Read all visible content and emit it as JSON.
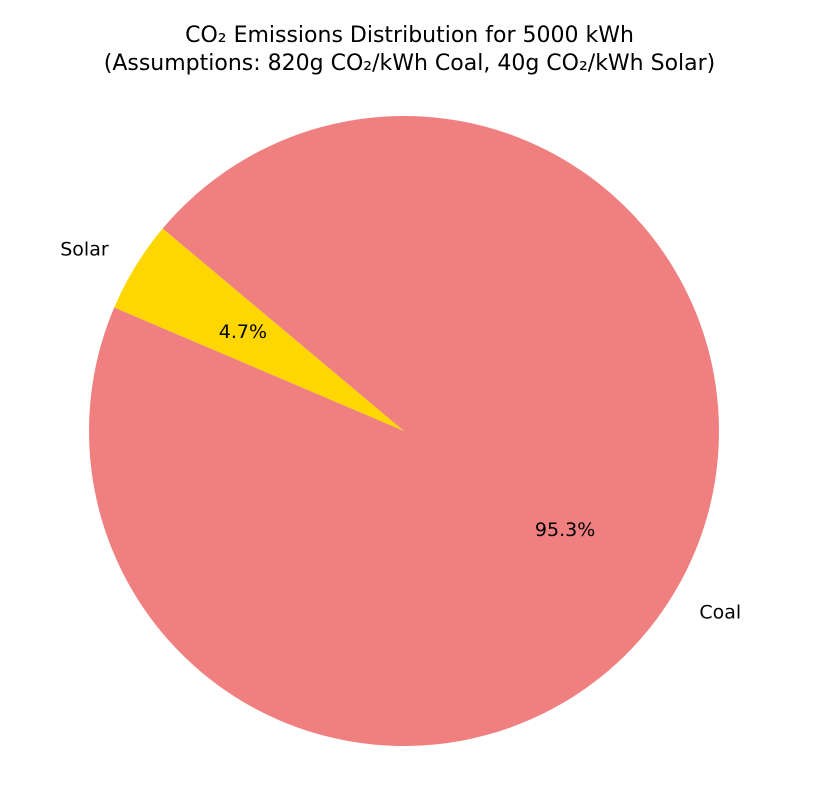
{
  "chart_data": {
    "type": "pie",
    "title_lines": [
      "CO₂ Emissions Distribution for 5000 kWh",
      "(Assumptions: 820g CO₂/kWh Coal, 40g CO₂/kWh Solar)"
    ],
    "slices": [
      {
        "label": "Solar",
        "value": 4.7,
        "pct_label": "4.7%",
        "color": "#ffd700"
      },
      {
        "label": "Coal",
        "value": 95.3,
        "pct_label": "95.3%",
        "color": "#f08080"
      }
    ],
    "start_angle_deg": 140,
    "direction": "counterclockwise",
    "legend": "none"
  }
}
